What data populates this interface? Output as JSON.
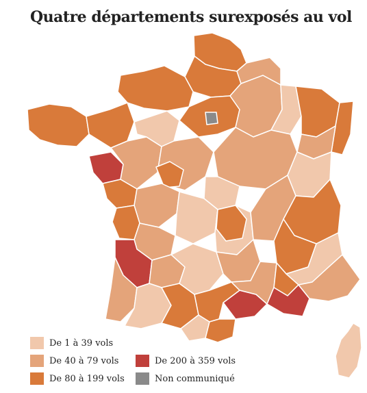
{
  "title": "Quatre départements surexposés au vol",
  "colors": {
    "cat1": "#f1c8ac",
    "cat2": "#e4a47a",
    "cat3": "#d97a3a",
    "cat4": "#c0403b",
    "na": "#8a8a8a",
    "border": "#ffffff"
  },
  "legend": [
    {
      "label": "De 1 à 39 vols",
      "color": "#f1c8ac"
    },
    {
      "label": "De 40 à 79 vols",
      "color": "#e4a47a"
    },
    {
      "label": "De 80 à 199 vols",
      "color": "#d97a3a"
    },
    {
      "label": "De 200 à 359 vols",
      "color": "#c0403b"
    },
    {
      "label": "Non communiqué",
      "color": "#8a8a8a"
    }
  ]
}
